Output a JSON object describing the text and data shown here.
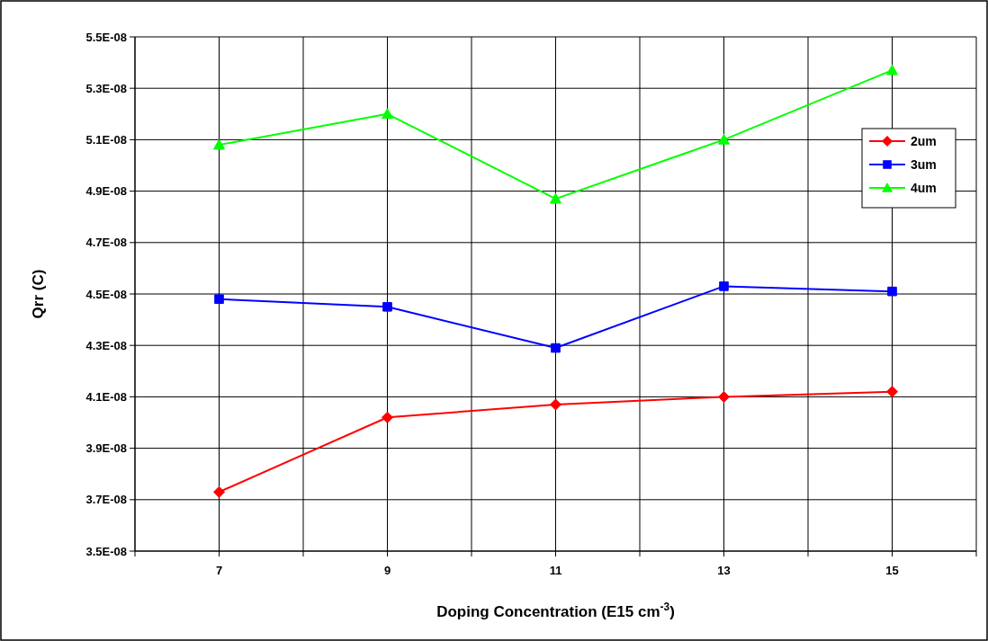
{
  "chart_data": {
    "type": "line",
    "xlabel": "Doping Concentration (E15 cm$^{-3}$)",
    "ylabel": "Qrr (C)",
    "x": [
      7,
      9,
      11,
      13,
      15
    ],
    "series": [
      {
        "name": "2um",
        "color": "#ff0000",
        "marker": "diamond",
        "values": [
          3.73e-08,
          4.02e-08,
          4.07e-08,
          4.1e-08,
          4.12e-08
        ]
      },
      {
        "name": "3um",
        "color": "#0000ff",
        "marker": "square",
        "values": [
          4.48e-08,
          4.45e-08,
          4.29e-08,
          4.53e-08,
          4.51e-08
        ]
      },
      {
        "name": "4um",
        "color": "#00ff00",
        "marker": "triangle",
        "values": [
          5.08e-08,
          5.2e-08,
          4.87e-08,
          5.1e-08,
          5.37e-08
        ]
      }
    ],
    "xlim": [
      6,
      16
    ],
    "xticks": [
      {
        "value": 6,
        "label": null
      },
      7,
      {
        "value": 8,
        "label": null
      },
      9,
      {
        "value": 10,
        "label": null
      },
      11,
      {
        "value": 12,
        "label": null
      },
      13,
      {
        "value": 14,
        "label": null
      },
      15,
      {
        "value": 16,
        "label": null
      }
    ],
    "ylim": [
      3.5e-08,
      5.5e-08
    ],
    "yticks": [
      {
        "value": 3.5e-08,
        "label": "3.5E-08"
      },
      {
        "value": 3.7e-08,
        "label": "3.7E-08"
      },
      {
        "value": 3.9e-08,
        "label": "3.9E-08"
      },
      {
        "value": 4.1e-08,
        "label": "4.1E-08"
      },
      {
        "value": 4.3e-08,
        "label": "4.3E-08"
      },
      {
        "value": 4.5e-08,
        "label": "4.5E-08"
      },
      {
        "value": 4.7e-08,
        "label": "4.7E-08"
      },
      {
        "value": 4.9e-08,
        "label": "4.9E-08"
      },
      {
        "value": 5.1e-08,
        "label": "5.1E-08"
      },
      {
        "value": 5.3e-08,
        "label": "5.3E-08"
      },
      {
        "value": 5.5e-08,
        "label": "5.5E-08"
      }
    ],
    "grid": true,
    "legend": "top right",
    "line_style": "solid"
  }
}
